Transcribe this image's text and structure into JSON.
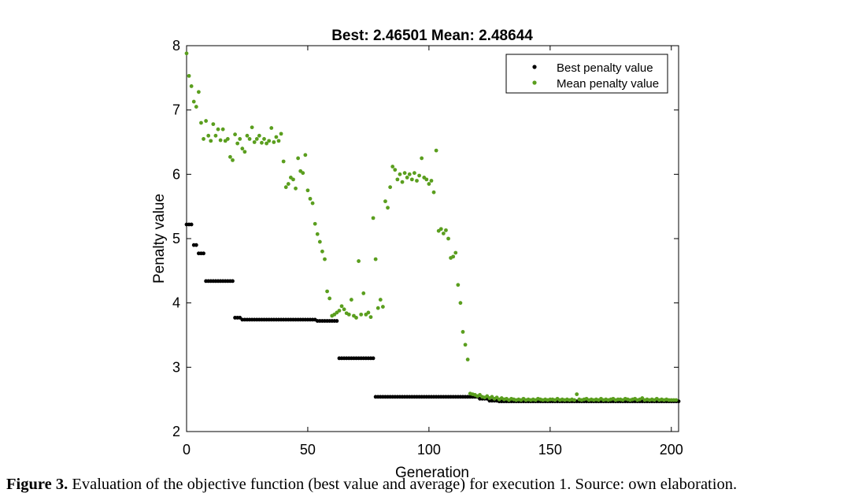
{
  "caption": {
    "label": "Figure 3.",
    "text": " Evaluation of the objective function (best value and average) for execution 1. Source: own elaboration."
  },
  "chart_data": {
    "type": "scatter",
    "title": "Best: 2.46501 Mean: 2.48644",
    "xlabel": "Generation",
    "ylabel": "Penalty value",
    "xlim": [
      0,
      203
    ],
    "ylim": [
      2,
      8
    ],
    "xticks": [
      0,
      50,
      100,
      150,
      200
    ],
    "yticks": [
      2,
      3,
      4,
      5,
      6,
      7,
      8
    ],
    "grid": false,
    "legend_position": "top-right",
    "series": [
      {
        "name": "Best penalty value",
        "color": "#000000",
        "segments": [
          {
            "x_from": 0,
            "x_to": 2,
            "y": 5.22
          },
          {
            "x_from": 3,
            "x_to": 4,
            "y": 4.9
          },
          {
            "x_from": 5,
            "x_to": 7,
            "y": 4.77
          },
          {
            "x_from": 8,
            "x_to": 19,
            "y": 4.34
          },
          {
            "x_from": 20,
            "x_to": 22,
            "y": 3.77
          },
          {
            "x_from": 23,
            "x_to": 53,
            "y": 3.74
          },
          {
            "x_from": 54,
            "x_to": 62,
            "y": 3.72
          },
          {
            "x_from": 63,
            "x_to": 77,
            "y": 3.14
          },
          {
            "x_from": 78,
            "x_to": 120,
            "y": 2.54
          },
          {
            "x_from": 121,
            "x_to": 124,
            "y": 2.51
          },
          {
            "x_from": 125,
            "x_to": 128,
            "y": 2.48
          },
          {
            "x_from": 129,
            "x_to": 203,
            "y": 2.47
          }
        ]
      },
      {
        "name": "Mean penalty value",
        "color": "#5a9e1e",
        "points": [
          [
            0,
            7.88
          ],
          [
            1,
            7.53
          ],
          [
            2,
            7.37
          ],
          [
            3,
            7.13
          ],
          [
            4,
            7.05
          ],
          [
            5,
            7.28
          ],
          [
            6,
            6.8
          ],
          [
            7,
            6.55
          ],
          [
            8,
            6.83
          ],
          [
            9,
            6.6
          ],
          [
            10,
            6.52
          ],
          [
            11,
            6.78
          ],
          [
            12,
            6.6
          ],
          [
            13,
            6.7
          ],
          [
            14,
            6.53
          ],
          [
            15,
            6.7
          ],
          [
            16,
            6.52
          ],
          [
            17,
            6.55
          ],
          [
            18,
            6.27
          ],
          [
            19,
            6.22
          ],
          [
            20,
            6.62
          ],
          [
            21,
            6.48
          ],
          [
            22,
            6.55
          ],
          [
            23,
            6.4
          ],
          [
            24,
            6.35
          ],
          [
            25,
            6.6
          ],
          [
            26,
            6.55
          ],
          [
            27,
            6.73
          ],
          [
            28,
            6.5
          ],
          [
            29,
            6.55
          ],
          [
            30,
            6.6
          ],
          [
            31,
            6.49
          ],
          [
            32,
            6.55
          ],
          [
            33,
            6.48
          ],
          [
            34,
            6.52
          ],
          [
            35,
            6.72
          ],
          [
            36,
            6.5
          ],
          [
            37,
            6.58
          ],
          [
            38,
            6.52
          ],
          [
            39,
            6.63
          ],
          [
            40,
            6.2
          ],
          [
            41,
            5.8
          ],
          [
            42,
            5.85
          ],
          [
            43,
            5.95
          ],
          [
            44,
            5.92
          ],
          [
            45,
            5.78
          ],
          [
            46,
            6.25
          ],
          [
            47,
            6.05
          ],
          [
            48,
            6.02
          ],
          [
            49,
            6.3
          ],
          [
            50,
            5.75
          ],
          [
            51,
            5.62
          ],
          [
            52,
            5.55
          ],
          [
            53,
            5.23
          ],
          [
            54,
            5.07
          ],
          [
            55,
            4.95
          ],
          [
            56,
            4.8
          ],
          [
            57,
            4.68
          ],
          [
            58,
            4.18
          ],
          [
            59,
            4.07
          ],
          [
            60,
            3.8
          ],
          [
            61,
            3.82
          ],
          [
            62,
            3.85
          ],
          [
            63,
            3.88
          ],
          [
            64,
            3.95
          ],
          [
            65,
            3.9
          ],
          [
            66,
            3.84
          ],
          [
            67,
            3.82
          ],
          [
            68,
            4.05
          ],
          [
            69,
            3.8
          ],
          [
            70,
            3.77
          ],
          [
            71,
            4.65
          ],
          [
            72,
            3.82
          ],
          [
            73,
            4.15
          ],
          [
            74,
            3.82
          ],
          [
            75,
            3.85
          ],
          [
            76,
            3.78
          ],
          [
            77,
            5.32
          ],
          [
            78,
            4.68
          ],
          [
            79,
            3.92
          ],
          [
            80,
            4.05
          ],
          [
            81,
            3.94
          ],
          [
            82,
            5.58
          ],
          [
            83,
            5.48
          ],
          [
            84,
            5.8
          ],
          [
            85,
            6.12
          ],
          [
            86,
            6.07
          ],
          [
            87,
            5.92
          ],
          [
            88,
            6.0
          ],
          [
            89,
            5.88
          ],
          [
            90,
            6.02
          ],
          [
            91,
            5.95
          ],
          [
            92,
            6.0
          ],
          [
            93,
            5.92
          ],
          [
            94,
            6.02
          ],
          [
            95,
            5.9
          ],
          [
            96,
            5.98
          ],
          [
            97,
            6.25
          ],
          [
            98,
            5.95
          ],
          [
            99,
            5.92
          ],
          [
            100,
            5.85
          ],
          [
            101,
            5.9
          ],
          [
            102,
            5.72
          ],
          [
            103,
            6.37
          ],
          [
            104,
            5.12
          ],
          [
            105,
            5.15
          ],
          [
            106,
            5.08
          ],
          [
            107,
            5.13
          ],
          [
            108,
            5.0
          ],
          [
            109,
            4.7
          ],
          [
            110,
            4.72
          ],
          [
            111,
            4.78
          ],
          [
            112,
            4.28
          ],
          [
            113,
            4.0
          ],
          [
            114,
            3.55
          ],
          [
            115,
            3.35
          ],
          [
            116,
            3.12
          ],
          [
            117,
            2.59
          ],
          [
            118,
            2.58
          ],
          [
            119,
            2.57
          ],
          [
            120,
            2.55
          ],
          [
            121,
            2.57
          ],
          [
            122,
            2.54
          ],
          [
            123,
            2.53
          ],
          [
            124,
            2.55
          ],
          [
            125,
            2.52
          ],
          [
            126,
            2.54
          ],
          [
            127,
            2.51
          ],
          [
            128,
            2.53
          ],
          [
            129,
            2.5
          ],
          [
            130,
            2.52
          ],
          [
            131,
            2.5
          ],
          [
            132,
            2.51
          ],
          [
            133,
            2.49
          ],
          [
            134,
            2.51
          ],
          [
            135,
            2.5
          ],
          [
            136,
            2.49
          ],
          [
            137,
            2.5
          ],
          [
            138,
            2.49
          ],
          [
            139,
            2.51
          ],
          [
            140,
            2.49
          ],
          [
            141,
            2.5
          ],
          [
            142,
            2.49
          ],
          [
            143,
            2.5
          ],
          [
            144,
            2.49
          ],
          [
            145,
            2.51
          ],
          [
            146,
            2.5
          ],
          [
            147,
            2.49
          ],
          [
            148,
            2.5
          ],
          [
            149,
            2.49
          ],
          [
            150,
            2.5
          ],
          [
            151,
            2.5
          ],
          [
            152,
            2.49
          ],
          [
            153,
            2.51
          ],
          [
            154,
            2.49
          ],
          [
            155,
            2.5
          ],
          [
            156,
            2.49
          ],
          [
            157,
            2.5
          ],
          [
            158,
            2.49
          ],
          [
            159,
            2.5
          ],
          [
            160,
            2.49
          ],
          [
            161,
            2.58
          ],
          [
            162,
            2.5
          ],
          [
            163,
            2.49
          ],
          [
            164,
            2.5
          ],
          [
            165,
            2.51
          ],
          [
            166,
            2.49
          ],
          [
            167,
            2.5
          ],
          [
            168,
            2.49
          ],
          [
            169,
            2.5
          ],
          [
            170,
            2.49
          ],
          [
            171,
            2.51
          ],
          [
            172,
            2.49
          ],
          [
            173,
            2.5
          ],
          [
            174,
            2.49
          ],
          [
            175,
            2.5
          ],
          [
            176,
            2.51
          ],
          [
            177,
            2.49
          ],
          [
            178,
            2.5
          ],
          [
            179,
            2.5
          ],
          [
            180,
            2.49
          ],
          [
            181,
            2.51
          ],
          [
            182,
            2.5
          ],
          [
            183,
            2.49
          ],
          [
            184,
            2.5
          ],
          [
            185,
            2.51
          ],
          [
            186,
            2.49
          ],
          [
            187,
            2.5
          ],
          [
            188,
            2.52
          ],
          [
            189,
            2.49
          ],
          [
            190,
            2.5
          ],
          [
            191,
            2.49
          ],
          [
            192,
            2.5
          ],
          [
            193,
            2.49
          ],
          [
            194,
            2.51
          ],
          [
            195,
            2.49
          ],
          [
            196,
            2.5
          ],
          [
            197,
            2.49
          ],
          [
            198,
            2.5
          ],
          [
            199,
            2.49
          ],
          [
            200,
            2.49
          ],
          [
            201,
            2.49
          ],
          [
            202,
            2.49
          ]
        ]
      }
    ]
  }
}
